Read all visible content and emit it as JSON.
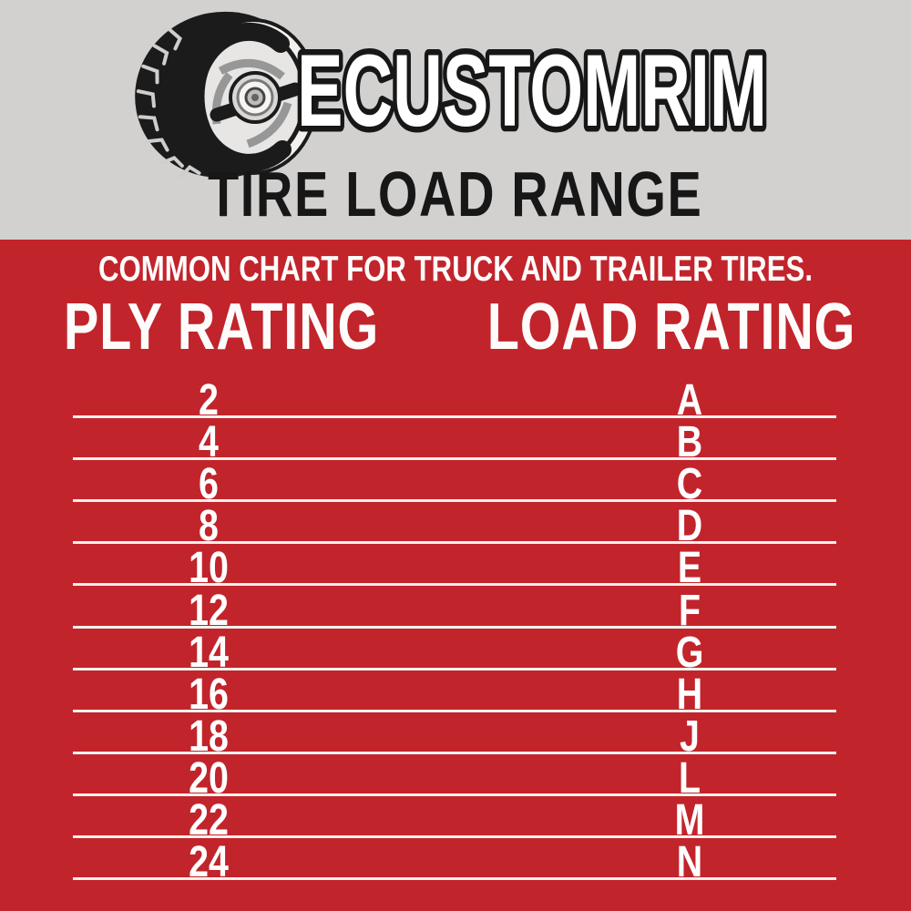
{
  "brand": {
    "name": "ECUSTOMRIM",
    "logo_icon": "tire-wheel-logo"
  },
  "header": {
    "title": "TIRE LOAD RANGE"
  },
  "chart_data": {
    "type": "table",
    "title": "TIRE LOAD RANGE",
    "subtitle": "COMMON CHART FOR TRUCK AND TRAILER TIRES.",
    "columns": [
      "PLY RATING",
      "LOAD RATING"
    ],
    "rows": [
      [
        "2",
        "A"
      ],
      [
        "4",
        "B"
      ],
      [
        "6",
        "C"
      ],
      [
        "8",
        "D"
      ],
      [
        "10",
        "E"
      ],
      [
        "12",
        "F"
      ],
      [
        "14",
        "G"
      ],
      [
        "16",
        "H"
      ],
      [
        "18",
        "J"
      ],
      [
        "20",
        "L"
      ],
      [
        "22",
        "M"
      ],
      [
        "24",
        "N"
      ]
    ],
    "layout": {
      "grid": "horizontal white rules between rows",
      "legend": "none"
    }
  },
  "table_headers": {
    "ply": "PLY RATING",
    "load": "LOAD RATING"
  },
  "colors": {
    "background_gray": "#d2d1cf",
    "background_red": "#c2242c",
    "text_white": "#ffffff",
    "text_black": "#171717",
    "row_divider": "#f5f0ec"
  }
}
